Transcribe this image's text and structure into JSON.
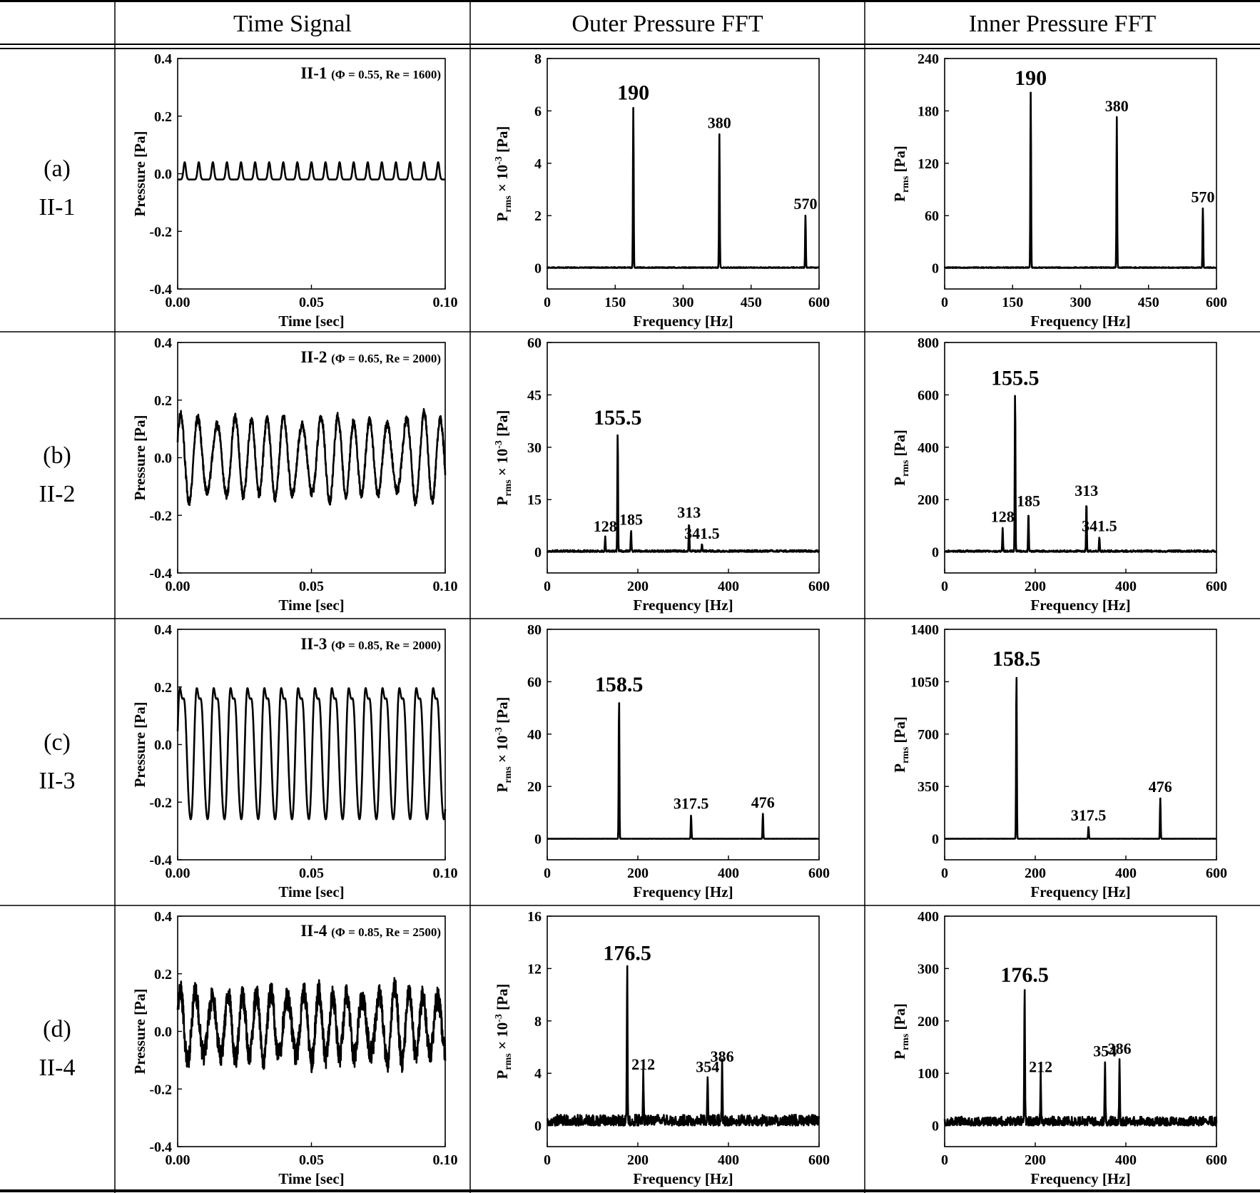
{
  "headers": [
    "",
    "Time Signal",
    "Outer Pressure FFT",
    "Inner Pressure FFT"
  ],
  "rows": [
    {
      "label": "(a)",
      "case": "II-1"
    },
    {
      "label": "(b)",
      "case": "II-2"
    },
    {
      "label": "(c)",
      "case": "II-3"
    },
    {
      "label": "(d)",
      "case": "II-4"
    }
  ],
  "chart_data": [
    {
      "type": "line",
      "panel": "time",
      "row": 0,
      "annotation_case": "II-1",
      "annotation_params": "(Φ = 0.55, Re = 1600)",
      "xlabel": "Time [sec]",
      "ylabel": "Pressure [Pa]",
      "xlim": [
        0,
        0.1
      ],
      "ylim": [
        -0.4,
        0.4
      ],
      "xticks": [
        "0.00",
        "0.05",
        "0.10"
      ],
      "yticks": [
        "-0.4",
        "-0.2",
        "0.0",
        "0.2",
        "0.4"
      ],
      "signal": {
        "kind": "pulse",
        "frequency_hz": 190,
        "baseline": -0.02,
        "amplitude": 0.06
      }
    },
    {
      "type": "line",
      "panel": "outer",
      "row": 0,
      "xlabel": "Frequency [Hz]",
      "ylabel": "Prms × 10-3 [Pa]",
      "xlim": [
        0,
        600
      ],
      "ylim": [
        -0.8,
        8
      ],
      "xticks": [
        "0",
        "150",
        "300",
        "450",
        "600"
      ],
      "yticks": [
        "0",
        "2",
        "4",
        "6",
        "8"
      ],
      "peaks": [
        {
          "x": 190,
          "y": 6.1,
          "label": "190",
          "major": true
        },
        {
          "x": 380,
          "y": 5.1,
          "label": "380"
        },
        {
          "x": 570,
          "y": 2.0,
          "label": "570"
        }
      ],
      "noise": 0.05
    },
    {
      "type": "line",
      "panel": "inner",
      "row": 0,
      "xlabel": "Frequency [Hz]",
      "ylabel": "Prms [Pa]",
      "xlim": [
        0,
        600
      ],
      "ylim": [
        -24,
        240
      ],
      "xticks": [
        "0",
        "150",
        "300",
        "450",
        "600"
      ],
      "yticks": [
        "0",
        "60",
        "120",
        "180",
        "240"
      ],
      "peaks": [
        {
          "x": 190,
          "y": 200,
          "label": "190",
          "major": true
        },
        {
          "x": 380,
          "y": 172,
          "label": "380"
        },
        {
          "x": 570,
          "y": 68,
          "label": "570"
        }
      ],
      "noise": 1.5
    },
    {
      "type": "line",
      "panel": "time",
      "row": 1,
      "annotation_case": "II-2",
      "annotation_params": "(Φ = 0.65, Re = 2000)",
      "xlabel": "Time [sec]",
      "ylabel": "Pressure [Pa]",
      "xlim": [
        0,
        0.1
      ],
      "ylim": [
        -0.4,
        0.4
      ],
      "xticks": [
        "0.00",
        "0.05",
        "0.10"
      ],
      "yticks": [
        "-0.4",
        "-0.2",
        "0.0",
        "0.2",
        "0.4"
      ],
      "signal": {
        "kind": "multi",
        "frequency_hz": 155.5,
        "baseline": 0.0,
        "amplitude": 0.12,
        "noise": 0.03
      }
    },
    {
      "type": "line",
      "panel": "outer",
      "row": 1,
      "xlabel": "Frequency [Hz]",
      "ylabel": "Prms × 10-3 [Pa]",
      "xlim": [
        0,
        600
      ],
      "ylim": [
        -6,
        60
      ],
      "xticks": [
        "0",
        "200",
        "400",
        "600"
      ],
      "yticks": [
        "0",
        "15",
        "30",
        "45",
        "60"
      ],
      "peaks": [
        {
          "x": 128,
          "y": 4,
          "label": "128"
        },
        {
          "x": 155.5,
          "y": 34,
          "label": "155.5",
          "major": true
        },
        {
          "x": 185,
          "y": 6,
          "label": "185"
        },
        {
          "x": 313,
          "y": 8,
          "label": "313"
        },
        {
          "x": 341.5,
          "y": 2,
          "label": "341.5"
        }
      ],
      "noise": 0.8
    },
    {
      "type": "line",
      "panel": "inner",
      "row": 1,
      "xlabel": "Frequency [Hz]",
      "ylabel": "Prms [Pa]",
      "xlim": [
        0,
        600
      ],
      "ylim": [
        -80,
        800
      ],
      "xticks": [
        "0",
        "200",
        "400",
        "600"
      ],
      "yticks": [
        "0",
        "200",
        "400",
        "600",
        "800"
      ],
      "peaks": [
        {
          "x": 128,
          "y": 90,
          "label": "128"
        },
        {
          "x": 155.5,
          "y": 605,
          "label": "155.5",
          "major": true
        },
        {
          "x": 185,
          "y": 150,
          "label": "185"
        },
        {
          "x": 313,
          "y": 190,
          "label": "313"
        },
        {
          "x": 341.5,
          "y": 55,
          "label": "341.5"
        }
      ],
      "noise": 10
    },
    {
      "type": "line",
      "panel": "time",
      "row": 2,
      "annotation_case": "II-3",
      "annotation_params": "(Φ = 0.85, Re = 2000)",
      "xlabel": "Time [sec]",
      "ylabel": "Pressure [Pa]",
      "xlim": [
        0,
        0.1
      ],
      "ylim": [
        -0.4,
        0.4
      ],
      "xticks": [
        "0.00",
        "0.05",
        "0.10"
      ],
      "yticks": [
        "-0.4",
        "-0.2",
        "0.0",
        "0.2",
        "0.4"
      ],
      "signal": {
        "kind": "sine",
        "frequency_hz": 158.5,
        "baseline": 0.0,
        "amplitude": 0.23
      }
    },
    {
      "type": "line",
      "panel": "outer",
      "row": 2,
      "xlabel": "Frequency [Hz]",
      "ylabel": "Prms × 10-3 [Pa]",
      "xlim": [
        0,
        600
      ],
      "ylim": [
        -8,
        80
      ],
      "xticks": [
        "0",
        "200",
        "400",
        "600"
      ],
      "yticks": [
        "0",
        "20",
        "40",
        "60",
        "80"
      ],
      "peaks": [
        {
          "x": 158.5,
          "y": 53,
          "label": "158.5",
          "major": true
        },
        {
          "x": 317.5,
          "y": 9,
          "label": "317.5"
        },
        {
          "x": 476,
          "y": 9.5,
          "label": "476"
        }
      ],
      "noise": 0.1
    },
    {
      "type": "line",
      "panel": "inner",
      "row": 2,
      "xlabel": "Frequency [Hz]",
      "ylabel": "Prms [Pa]",
      "xlim": [
        0,
        600
      ],
      "ylim": [
        -140,
        1400
      ],
      "xticks": [
        "0",
        "200",
        "400",
        "600"
      ],
      "yticks": [
        "0",
        "350",
        "700",
        "1050",
        "1400"
      ],
      "peaks": [
        {
          "x": 158.5,
          "y": 1100,
          "label": "158.5",
          "major": true
        },
        {
          "x": 317.5,
          "y": 80,
          "label": "317.5"
        },
        {
          "x": 476,
          "y": 270,
          "label": "476"
        }
      ],
      "noise": 2
    },
    {
      "type": "line",
      "panel": "time",
      "row": 3,
      "annotation_case": "II-4",
      "annotation_params": "(Φ = 0.85, Re = 2500)",
      "xlabel": "Time [sec]",
      "ylabel": "Pressure [Pa]",
      "xlim": [
        0,
        0.1
      ],
      "ylim": [
        -0.4,
        0.4
      ],
      "xticks": [
        "0.00",
        "0.05",
        "0.10"
      ],
      "yticks": [
        "-0.4",
        "-0.2",
        "0.0",
        "0.2",
        "0.4"
      ],
      "signal": {
        "kind": "multi",
        "frequency_hz": 176.5,
        "baseline": 0.02,
        "amplitude": 0.1,
        "noise": 0.08
      }
    },
    {
      "type": "line",
      "panel": "outer",
      "row": 3,
      "xlabel": "Frequency [Hz]",
      "ylabel": "Prms × 10-3 [Pa]",
      "xlim": [
        0,
        600
      ],
      "ylim": [
        -1.6,
        16
      ],
      "xticks": [
        "0",
        "200",
        "400",
        "600"
      ],
      "yticks": [
        "0",
        "4",
        "8",
        "12",
        "16"
      ],
      "peaks": [
        {
          "x": 176.5,
          "y": 12,
          "label": "176.5",
          "major": true
        },
        {
          "x": 212,
          "y": 3.8,
          "label": "212"
        },
        {
          "x": 354,
          "y": 3.6,
          "label": "354"
        },
        {
          "x": 386,
          "y": 4.4,
          "label": "386"
        }
      ],
      "noise": 1.2
    },
    {
      "type": "line",
      "panel": "inner",
      "row": 3,
      "xlabel": "Frequency [Hz]",
      "ylabel": "Prms [Pa]",
      "xlim": [
        0,
        600
      ],
      "ylim": [
        -40,
        400
      ],
      "xticks": [
        "0",
        "200",
        "400",
        "600"
      ],
      "yticks": [
        "0",
        "100",
        "200",
        "300",
        "400"
      ],
      "peaks": [
        {
          "x": 176.5,
          "y": 258,
          "label": "176.5",
          "major": true
        },
        {
          "x": 212,
          "y": 90,
          "label": "212"
        },
        {
          "x": 354,
          "y": 120,
          "label": "354"
        },
        {
          "x": 386,
          "y": 125,
          "label": "386"
        }
      ],
      "noise": 25
    }
  ]
}
